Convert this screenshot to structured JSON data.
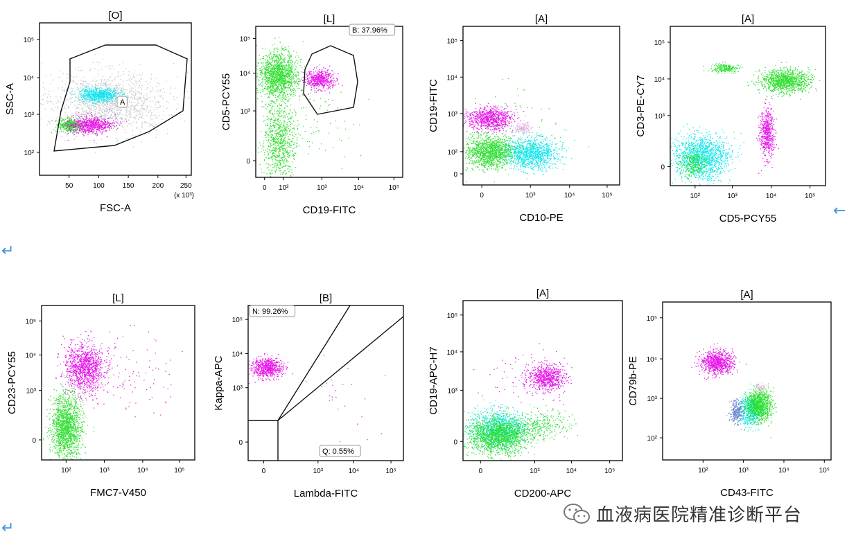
{
  "panels": [
    {
      "id": "p1",
      "title": "[O]",
      "xlabel": "FSC-A",
      "ylabel": "SSC-A",
      "x_unit_note": "(x 10³)",
      "x_ticks": [
        "50",
        "100",
        "150",
        "200",
        "250"
      ],
      "y_ticks": [
        "10²",
        "10³",
        "10⁴",
        "10⁵"
      ],
      "gate_labels": [
        {
          "text": "A",
          "boxed": true
        }
      ],
      "populations": [
        {
          "color": "#9a9aa5",
          "label": "debris/other",
          "x_range": [
            40,
            220
          ],
          "y_range": [
            2.2,
            4.5
          ]
        },
        {
          "color": "#00e5ee",
          "label": "cyan",
          "x_center": 105,
          "y_center": 3.5
        },
        {
          "color": "#e600e6",
          "label": "magenta",
          "x_center": 85,
          "y_center": 2.85
        },
        {
          "color": "#22dd22",
          "label": "green",
          "x_center": 55,
          "y_center": 2.8
        }
      ]
    },
    {
      "id": "p2",
      "title": "[L]",
      "xlabel": "CD19-FITC",
      "ylabel": "CD5-PCY55",
      "x_ticks": [
        "0",
        "10²",
        "10³",
        "10⁴",
        "10⁵"
      ],
      "y_ticks": [
        "0",
        "10³",
        "10⁴",
        "10⁵"
      ],
      "gate_labels": [
        {
          "text": "B: 37.96%",
          "boxed": true
        }
      ],
      "populations": [
        {
          "color": "#22dd22",
          "label": "CD5+ T cells",
          "x_center": 1.9,
          "y_center": 4.1
        },
        {
          "color": "#22dd22",
          "label": "CD5- column",
          "x_center": 1.9,
          "y_center": 2.0
        },
        {
          "color": "#e600e6",
          "label": "CD19+CD5+",
          "x_center": 2.9,
          "y_center": 3.9
        }
      ]
    },
    {
      "id": "p3",
      "title": "[A]",
      "xlabel": "CD10-PE",
      "ylabel": "CD19-FITC",
      "x_ticks": [
        "0",
        "10³",
        "10⁴",
        "10⁵"
      ],
      "y_ticks": [
        "0",
        "10²",
        "10³",
        "10⁴",
        "10⁵"
      ],
      "populations": [
        {
          "color": "#e600e6",
          "label": "CD19+",
          "x_center": 0.2,
          "y_center": 2.9
        },
        {
          "color": "#22dd22",
          "label": "green",
          "x_center": 0.2,
          "y_center": 2.1
        },
        {
          "color": "#00e5ee",
          "label": "cyan",
          "x_center": 3.2,
          "y_center": 2.0
        },
        {
          "color": "#e8a8e8",
          "label": "pink",
          "x_center": 2.9,
          "y_center": 2.7
        }
      ]
    },
    {
      "id": "p4",
      "title": "[A]",
      "xlabel": "CD5-PCY55",
      "ylabel": "CD3-PE-CY7",
      "x_ticks": [
        "10²",
        "10³",
        "10⁴",
        "10⁵"
      ],
      "y_ticks": [
        "0",
        "10³",
        "10⁴",
        "10⁵"
      ],
      "populations": [
        {
          "color": "#22dd22",
          "label": "CD3+CD5+",
          "x_center": 4.2,
          "y_center": 4.0
        },
        {
          "color": "#22dd22",
          "label": "CD3+ dim",
          "x_center": 2.9,
          "y_center": 4.3
        },
        {
          "color": "#e600e6",
          "label": "CD5+CD3-",
          "x_center": 3.9,
          "y_center": 2.6
        },
        {
          "color": "#00e5ee",
          "label": "CD3-CD5-",
          "x_center": 2.3,
          "y_center": 1.2
        }
      ]
    },
    {
      "id": "p5",
      "title": "[L]",
      "xlabel": "FMC7-V450",
      "ylabel": "CD23-PCY55",
      "x_ticks": [
        "10²",
        "10³",
        "10⁴",
        "10⁵"
      ],
      "y_ticks": [
        "0",
        "10³",
        "10⁴",
        "10⁵"
      ],
      "populations": [
        {
          "color": "#e600e6",
          "label": "CD23+",
          "x_center": 2.2,
          "y_center": 3.7
        },
        {
          "color": "#22dd22",
          "label": "CD23-",
          "x_center": 1.9,
          "y_center": 1.9
        }
      ]
    },
    {
      "id": "p6",
      "title": "[B]",
      "xlabel": "Lambda-FITC",
      "ylabel": "Kappa-APC",
      "x_ticks": [
        "0",
        "10³",
        "10⁴",
        "10⁵"
      ],
      "y_ticks": [
        "0",
        "10³",
        "10⁴",
        "10⁵"
      ],
      "gate_labels": [
        {
          "text": "N: 99.26%",
          "boxed": true
        },
        {
          "text": "Q: 0.55%",
          "boxed": true
        }
      ],
      "populations": [
        {
          "color": "#e600e6",
          "label": "Kappa+",
          "x_center": 0.1,
          "y_center": 3.5
        }
      ]
    },
    {
      "id": "p7",
      "title": "[A]",
      "xlabel": "CD200-APC",
      "ylabel": "CD19-APC-H7",
      "x_ticks": [
        "0",
        "10³",
        "10⁴",
        "10⁵"
      ],
      "y_ticks": [
        "0",
        "10³",
        "10⁴",
        "10⁵"
      ],
      "populations": [
        {
          "color": "#e600e6",
          "label": "CD19+CD200+",
          "x_center": 3.3,
          "y_center": 3.4
        },
        {
          "color": "#00e5ee",
          "label": "cyan",
          "x_center": 1.2,
          "y_center": 1.4
        },
        {
          "color": "#22dd22",
          "label": "green",
          "x_center": 1.2,
          "y_center": 1.3
        }
      ]
    },
    {
      "id": "p8",
      "title": "[A]",
      "xlabel": "CD43-FITC",
      "ylabel": "CD79b-PE",
      "x_ticks": [
        "10²",
        "10³",
        "10⁴",
        "10⁵"
      ],
      "y_ticks": [
        "10²",
        "10³",
        "10⁴",
        "10⁵"
      ],
      "populations": [
        {
          "color": "#e600e6",
          "label": "CD79b+",
          "x_center": 2.4,
          "y_center": 3.8
        },
        {
          "color": "#22dd22",
          "label": "CD43+",
          "x_center": 3.5,
          "y_center": 2.8
        },
        {
          "color": "#6677cc",
          "label": "blue",
          "x_center": 2.9,
          "y_center": 2.5
        },
        {
          "color": "#00e5ee",
          "label": "cyan",
          "x_center": 3.3,
          "y_center": 2.4
        }
      ]
    }
  ],
  "footer": {
    "brand_text": "血液病医院精准诊断平台",
    "icon": "wechat-icon"
  },
  "return_mark": "↵",
  "back_arrow": "←",
  "chart_data": [
    {
      "type": "scatter",
      "title": "[O]",
      "xlabel": "FSC-A",
      "ylabel": "SSC-A",
      "xlim": [
        0,
        270
      ],
      "ylim": [
        1.75,
        5.35
      ],
      "yscale": "log"
    },
    {
      "type": "scatter",
      "title": "[L]",
      "xlabel": "CD19-FITC",
      "ylabel": "CD5-PCY55",
      "annotation": "B: 37.96%"
    },
    {
      "type": "scatter",
      "title": "[A]",
      "xlabel": "CD10-PE",
      "ylabel": "CD19-FITC"
    },
    {
      "type": "scatter",
      "title": "[A]",
      "xlabel": "CD5-PCY55",
      "ylabel": "CD3-PE-CY7"
    },
    {
      "type": "scatter",
      "title": "[L]",
      "xlabel": "FMC7-V450",
      "ylabel": "CD23-PCY55"
    },
    {
      "type": "scatter",
      "title": "[B]",
      "xlabel": "Lambda-FITC",
      "ylabel": "Kappa-APC",
      "annotations": [
        "N: 99.26%",
        "Q: 0.55%"
      ]
    },
    {
      "type": "scatter",
      "title": "[A]",
      "xlabel": "CD200-APC",
      "ylabel": "CD19-APC-H7"
    },
    {
      "type": "scatter",
      "title": "[A]",
      "xlabel": "CD43-FITC",
      "ylabel": "CD79b-PE"
    }
  ]
}
